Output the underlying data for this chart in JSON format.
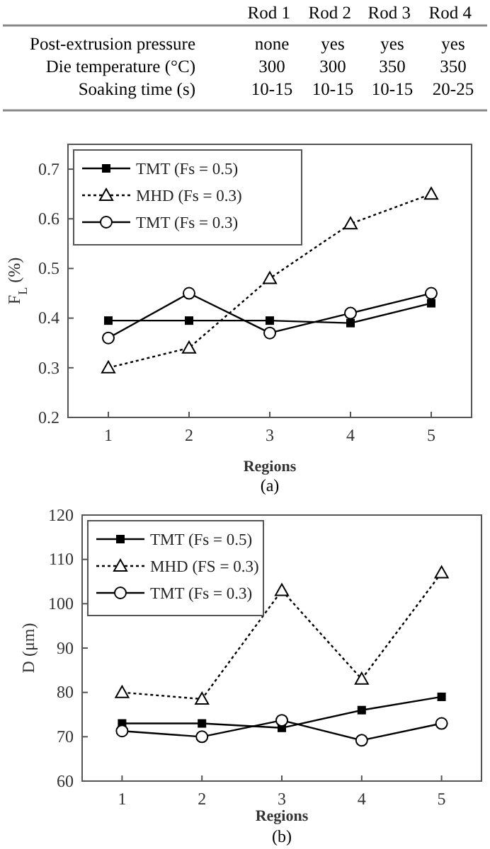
{
  "chart_data": [
    {
      "type": "other",
      "categories": [
        "Rod 1",
        "Rod 2",
        "Rod 3",
        "Rod 4"
      ],
      "y_categories": [
        "Post-extrusion pressure",
        "Die temperature (°C)",
        "Soaking time (s)"
      ],
      "cell_labels": [
        [
          "none",
          "yes",
          "yes",
          "yes"
        ],
        [
          "300",
          "300",
          "350",
          "350"
        ],
        [
          "10-15",
          "10-15",
          "10-15",
          "20-25"
        ]
      ]
    },
    {
      "type": "line",
      "xlabel": "Regions",
      "ylabel": "F$_{L}$ (%)",
      "x": [
        1,
        2,
        3,
        4,
        5
      ],
      "xlim": [
        0.5,
        5.5
      ],
      "xticks": [
        1,
        2,
        3,
        4,
        5
      ],
      "ylim": [
        0.2,
        0.75
      ],
      "yticks": [
        0.2,
        0.3,
        0.4,
        0.5,
        0.6,
        0.7
      ],
      "legend": "top left",
      "annotations": [
        "(a)"
      ],
      "series": [
        {
          "name": "TMT (Fs = 0.5)",
          "color": "#000000",
          "marker": "square",
          "line_style": "solid",
          "values": [
            0.395,
            0.395,
            0.395,
            0.39,
            0.43
          ]
        },
        {
          "name": "MHD (Fs = 0.3)",
          "color": "#000000",
          "marker": "triangle",
          "line_style": "dotted",
          "values": [
            0.3,
            0.34,
            0.48,
            0.59,
            0.65
          ]
        },
        {
          "name": "TMT (Fs = 0.3)",
          "color": "#000000",
          "marker": "circle",
          "line_style": "solid",
          "values": [
            0.36,
            0.45,
            0.37,
            0.41,
            0.45
          ]
        }
      ]
    },
    {
      "type": "line",
      "xlabel": "Regions",
      "ylabel": "D (μm)",
      "x": [
        1,
        2,
        3,
        4,
        5
      ],
      "xlim": [
        0.5,
        5.5
      ],
      "xticks": [
        1,
        2,
        3,
        4,
        5
      ],
      "ylim": [
        60,
        120
      ],
      "yticks": [
        60,
        70,
        80,
        90,
        100,
        110,
        120
      ],
      "legend": "top left",
      "annotations": [
        "(b)"
      ],
      "series": [
        {
          "name": "TMT (Fs = 0.5)",
          "color": "#000000",
          "marker": "square",
          "line_style": "solid",
          "values": [
            73,
            73,
            72,
            76,
            79
          ]
        },
        {
          "name": "MHD (FS = 0.3)",
          "color": "#000000",
          "marker": "triangle",
          "line_style": "dotted",
          "values": [
            80,
            78.5,
            103,
            83,
            107
          ]
        },
        {
          "name": "TMT (Fs = 0.3)",
          "color": "#000000",
          "marker": "circle",
          "line_style": "solid",
          "values": [
            71.3,
            70,
            73.7,
            69.2,
            73
          ]
        }
      ]
    }
  ]
}
